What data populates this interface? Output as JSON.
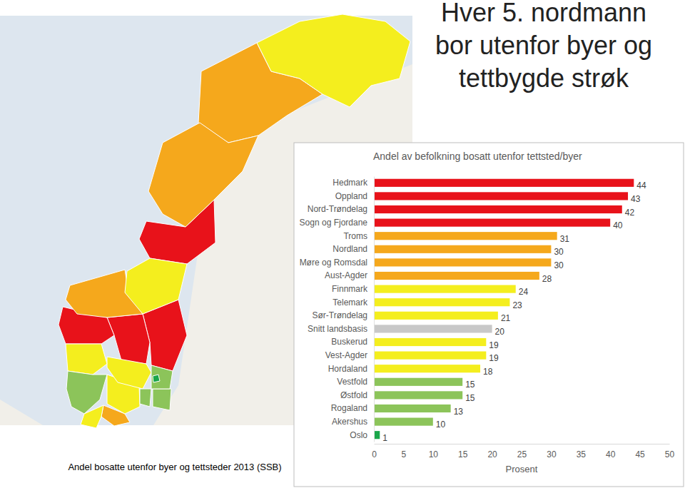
{
  "chart_data": {
    "type": "bar",
    "orientation": "horizontal",
    "title": "Andel av befolkning bosatt utenfor tettsted/byer",
    "annotations": [
      "Hver 5. nordmann bor utenfor byer og tettbygde strøk",
      "Andel bosatte utenfor byer og tettsteder 2013 (SSB)"
    ],
    "xlabel": "Prosent",
    "categories": [
      "Hedmark",
      "Oppland",
      "Nord-Trøndelag",
      "Sogn og Fjordane",
      "Troms",
      "Nordland",
      "Møre og Romsdal",
      "Aust-Agder",
      "Finnmark",
      "Telemark",
      "Sør-Trøndelag",
      "Snitt landsbasis",
      "Buskerud",
      "Vest-Agder",
      "Hordaland",
      "Vestfold",
      "Østfold",
      "Rogaland",
      "Akershus",
      "Oslo"
    ],
    "values": [
      44,
      43,
      42,
      40,
      31,
      30,
      30,
      28,
      24,
      23,
      21,
      20,
      19,
      19,
      18,
      15,
      15,
      13,
      10,
      1
    ],
    "colors": [
      "#e8121a",
      "#e8121a",
      "#e8121a",
      "#e8121a",
      "#f5a81c",
      "#f5a81c",
      "#f5a81c",
      "#f5a81c",
      "#f4ee1e",
      "#f4ee1e",
      "#f4ee1e",
      "#c8c8c8",
      "#f4ee1e",
      "#f4ee1e",
      "#f4ee1e",
      "#8cc45a",
      "#8cc45a",
      "#8cc45a",
      "#8cc45a",
      "#1aa64a"
    ],
    "xlim": [
      0,
      50
    ],
    "xticks": [
      0,
      5,
      10,
      15,
      20,
      25,
      30,
      35,
      40,
      45,
      50
    ],
    "data_labels": true,
    "grid": false
  }
}
